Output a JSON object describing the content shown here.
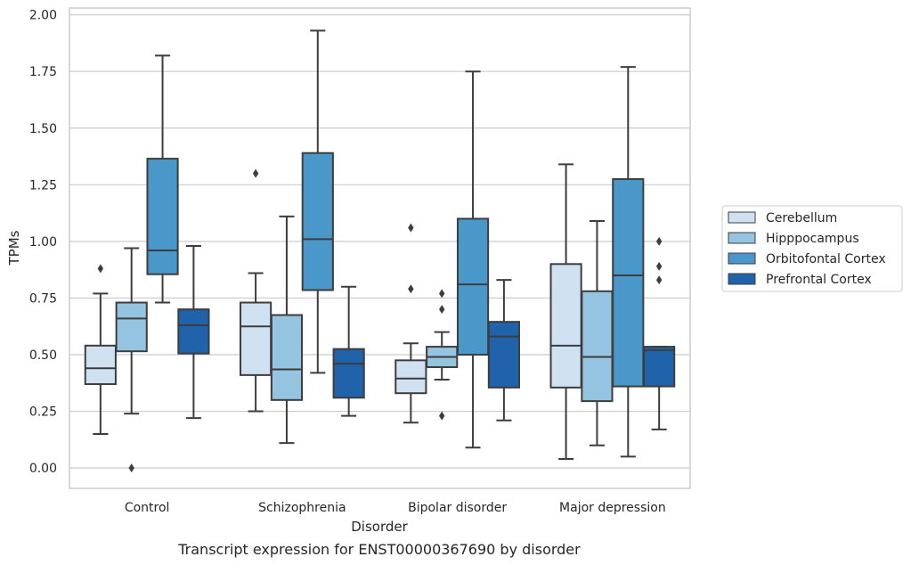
{
  "caption": "Transcript expression for ENST00000367690 by disorder",
  "chart_data": {
    "type": "box",
    "title": "",
    "xlabel": "Disorder",
    "ylabel": "TPMs",
    "ylim": [
      -0.09,
      2.03
    ],
    "yticks": [
      "0.00",
      "0.25",
      "0.50",
      "0.75",
      "1.00",
      "1.25",
      "1.50",
      "1.75",
      "2.00"
    ],
    "grid": "horizontal",
    "legend_position": "right",
    "categories": [
      "Control",
      "Schizophrenia",
      "Bipolar disorder",
      "Major depression"
    ],
    "series": [
      {
        "name": "Cerebellum",
        "color": "#d0e1f2",
        "boxes": [
          {
            "whislo": 0.15,
            "q1": 0.37,
            "med": 0.44,
            "q3": 0.54,
            "whishi": 0.77,
            "fliers": [
              0.88
            ]
          },
          {
            "whislo": 0.25,
            "q1": 0.41,
            "med": 0.625,
            "q3": 0.73,
            "whishi": 0.86,
            "fliers": [
              1.3
            ]
          },
          {
            "whislo": 0.2,
            "q1": 0.33,
            "med": 0.395,
            "q3": 0.475,
            "whishi": 0.55,
            "fliers": [
              0.79,
              1.06
            ]
          },
          {
            "whislo": 0.04,
            "q1": 0.355,
            "med": 0.54,
            "q3": 0.9,
            "whishi": 1.34,
            "fliers": []
          }
        ]
      },
      {
        "name": "Hipppocampus",
        "color": "#94c4df",
        "boxes": [
          {
            "whislo": 0.24,
            "q1": 0.515,
            "med": 0.66,
            "q3": 0.73,
            "whishi": 0.97,
            "fliers": [
              0.0
            ]
          },
          {
            "whislo": 0.11,
            "q1": 0.3,
            "med": 0.435,
            "q3": 0.675,
            "whishi": 1.11,
            "fliers": []
          },
          {
            "whislo": 0.39,
            "q1": 0.445,
            "med": 0.49,
            "q3": 0.535,
            "whishi": 0.6,
            "fliers": [
              0.23,
              0.7,
              0.77
            ]
          },
          {
            "whislo": 0.1,
            "q1": 0.295,
            "med": 0.49,
            "q3": 0.78,
            "whishi": 1.09,
            "fliers": []
          }
        ]
      },
      {
        "name": "Orbitofontal Cortex",
        "color": "#4a98c9",
        "boxes": [
          {
            "whislo": 0.73,
            "q1": 0.855,
            "med": 0.96,
            "q3": 1.365,
            "whishi": 1.82,
            "fliers": []
          },
          {
            "whislo": 0.42,
            "q1": 0.785,
            "med": 1.01,
            "q3": 1.39,
            "whishi": 1.93,
            "fliers": []
          },
          {
            "whislo": 0.09,
            "q1": 0.5,
            "med": 0.81,
            "q3": 1.1,
            "whishi": 1.75,
            "fliers": []
          },
          {
            "whislo": 0.05,
            "q1": 0.36,
            "med": 0.85,
            "q3": 1.275,
            "whishi": 1.77,
            "fliers": []
          }
        ]
      },
      {
        "name": "Prefrontal Cortex",
        "color": "#2163aa",
        "boxes": [
          {
            "whislo": 0.22,
            "q1": 0.505,
            "med": 0.63,
            "q3": 0.7,
            "whishi": 0.98,
            "fliers": []
          },
          {
            "whislo": 0.23,
            "q1": 0.31,
            "med": 0.46,
            "q3": 0.525,
            "whishi": 0.8,
            "fliers": []
          },
          {
            "whislo": 0.21,
            "q1": 0.355,
            "med": 0.58,
            "q3": 0.645,
            "whishi": 0.83,
            "fliers": []
          },
          {
            "whislo": 0.17,
            "q1": 0.36,
            "med": 0.52,
            "q3": 0.535,
            "whishi": 0.535,
            "fliers": [
              0.83,
              0.89,
              1.0
            ]
          }
        ]
      }
    ]
  }
}
